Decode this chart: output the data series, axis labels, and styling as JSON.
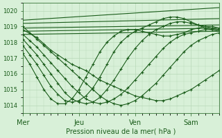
{
  "bg_color": "#d8f0d8",
  "grid_color": "#b8d8b8",
  "line_color": "#1a5c1a",
  "marker": "+",
  "xlabel": "Pression niveau de la mer( hPa )",
  "xtick_labels": [
    "Mer",
    "Jeu",
    "Ven",
    "Sam"
  ],
  "xtick_positions": [
    0,
    48,
    96,
    144
  ],
  "ylim": [
    1013.5,
    1020.5
  ],
  "yticks": [
    1014,
    1015,
    1016,
    1017,
    1018,
    1019,
    1020
  ],
  "xlim": [
    0,
    168
  ],
  "series": [
    {
      "x": [
        0,
        168
      ],
      "y": [
        1019.4,
        1020.2
      ],
      "sparse": true
    },
    {
      "x": [
        0,
        168
      ],
      "y": [
        1019.2,
        1019.5
      ],
      "sparse": true
    },
    {
      "x": [
        0,
        168
      ],
      "y": [
        1018.9,
        1019.1
      ],
      "sparse": true
    },
    {
      "x": [
        0,
        168
      ],
      "y": [
        1018.7,
        1018.9
      ],
      "sparse": true
    },
    {
      "x": [
        0,
        168
      ],
      "y": [
        1018.5,
        1018.7
      ],
      "sparse": true
    },
    {
      "x": [
        0,
        12,
        18,
        24,
        30,
        36,
        42,
        48,
        54,
        60,
        66,
        72,
        78,
        84,
        90,
        96,
        102,
        108,
        114,
        120,
        126,
        132,
        138,
        144,
        150,
        156,
        162,
        168
      ],
      "y": [
        1018.8,
        1018.3,
        1017.9,
        1017.5,
        1017.2,
        1016.9,
        1016.6,
        1016.4,
        1016.2,
        1015.9,
        1015.6,
        1015.4,
        1015.2,
        1015.0,
        1014.8,
        1014.6,
        1014.5,
        1014.4,
        1014.3,
        1014.3,
        1014.4,
        1014.6,
        1014.8,
        1015.0,
        1015.3,
        1015.6,
        1015.9,
        1016.2
      ],
      "sparse": false
    },
    {
      "x": [
        0,
        6,
        12,
        18,
        24,
        30,
        36,
        42,
        48,
        54,
        60,
        66,
        72,
        78,
        84,
        90,
        96,
        102,
        108,
        114,
        120,
        126,
        132,
        138,
        144,
        150,
        156,
        162,
        168
      ],
      "y": [
        1019.0,
        1018.6,
        1018.2,
        1017.8,
        1017.4,
        1017.0,
        1016.6,
        1016.2,
        1015.8,
        1015.4,
        1015.0,
        1014.6,
        1014.3,
        1014.1,
        1014.0,
        1014.1,
        1014.3,
        1014.6,
        1015.0,
        1015.4,
        1015.9,
        1016.4,
        1016.9,
        1017.4,
        1017.8,
        1018.1,
        1018.3,
        1018.5,
        1018.6
      ],
      "sparse": false
    },
    {
      "x": [
        0,
        6,
        12,
        18,
        24,
        30,
        36,
        42,
        48,
        54,
        60,
        66,
        72,
        78,
        84,
        90,
        96,
        102,
        108,
        114,
        120,
        126,
        132,
        138,
        144,
        150,
        156,
        162,
        168
      ],
      "y": [
        1018.5,
        1018.1,
        1017.7,
        1017.2,
        1016.7,
        1016.2,
        1015.7,
        1015.2,
        1014.8,
        1014.4,
        1014.2,
        1014.1,
        1014.2,
        1014.4,
        1014.7,
        1015.1,
        1015.6,
        1016.1,
        1016.6,
        1017.1,
        1017.6,
        1018.0,
        1018.3,
        1018.5,
        1018.6,
        1018.7,
        1018.8,
        1018.8,
        1018.8
      ],
      "sparse": false
    },
    {
      "x": [
        0,
        6,
        12,
        18,
        24,
        30,
        36,
        42,
        48,
        54,
        60,
        66,
        72,
        78,
        84,
        90,
        96,
        102,
        108,
        114,
        120,
        126,
        132,
        138,
        144,
        150,
        156,
        162,
        168
      ],
      "y": [
        1018.2,
        1017.7,
        1017.2,
        1016.6,
        1016.0,
        1015.4,
        1014.8,
        1014.4,
        1014.2,
        1014.1,
        1014.2,
        1014.5,
        1015.0,
        1015.6,
        1016.3,
        1017.0,
        1017.6,
        1018.1,
        1018.5,
        1018.8,
        1019.0,
        1019.2,
        1019.3,
        1019.3,
        1019.2,
        1019.1,
        1019.0,
        1018.9,
        1018.8
      ],
      "sparse": false
    },
    {
      "x": [
        0,
        6,
        12,
        18,
        24,
        30,
        36,
        42,
        48,
        54,
        60,
        66,
        72,
        78,
        84,
        90,
        96,
        102,
        108,
        114,
        120,
        126,
        132,
        138,
        144,
        150,
        156,
        162,
        168
      ],
      "y": [
        1017.8,
        1017.2,
        1016.6,
        1015.9,
        1015.2,
        1014.7,
        1014.3,
        1014.2,
        1014.3,
        1014.6,
        1015.1,
        1015.8,
        1016.6,
        1017.4,
        1018.0,
        1018.4,
        1018.7,
        1018.9,
        1019.1,
        1019.3,
        1019.5,
        1019.6,
        1019.6,
        1019.5,
        1019.3,
        1019.1,
        1018.9,
        1018.8,
        1018.7
      ],
      "sparse": false
    },
    {
      "x": [
        0,
        6,
        12,
        18,
        24,
        30,
        36,
        42,
        48,
        54,
        60,
        66,
        72,
        78,
        84,
        90,
        96,
        102,
        108,
        114,
        120,
        126,
        132,
        138,
        144,
        150,
        156,
        162,
        168
      ],
      "y": [
        1017.3,
        1016.6,
        1015.8,
        1015.0,
        1014.4,
        1014.1,
        1014.1,
        1014.4,
        1015.0,
        1015.8,
        1016.6,
        1017.4,
        1018.0,
        1018.4,
        1018.7,
        1018.8,
        1018.8,
        1018.7,
        1018.6,
        1018.5,
        1018.4,
        1018.4,
        1018.5,
        1018.6,
        1018.8,
        1018.9,
        1019.0,
        1019.0,
        1018.9
      ],
      "sparse": false
    }
  ]
}
